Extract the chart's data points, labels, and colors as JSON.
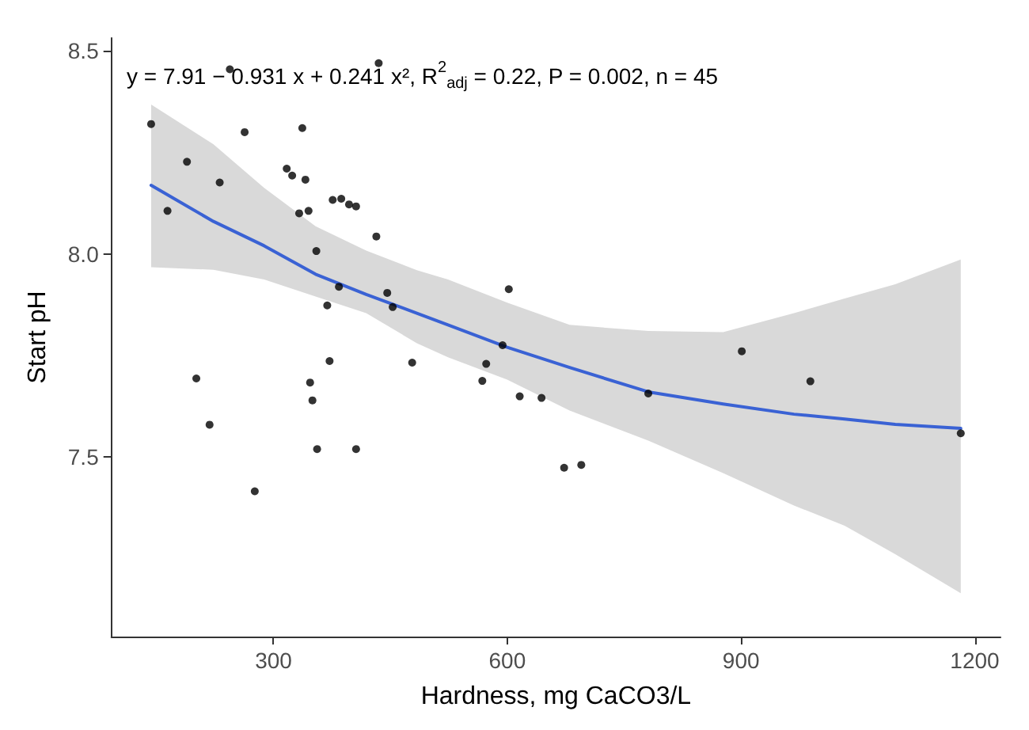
{
  "chart_data": {
    "type": "scatter",
    "xlabel": "Hardness, mg CaCO3/L",
    "ylabel": "Start pH",
    "annotations": [
      "y = 7.91 − 0.931 x + 0.241 x², R$^{2}$$_{adj}$ = 0.22, P = 0.002, n = 45"
    ],
    "xlim": [
      92,
      1233
    ],
    "ylim": [
      7.057,
      8.532
    ],
    "xticks": [
      300,
      600,
      900,
      1200
    ],
    "yticks": [
      {
        "value": 7.5,
        "label": "7.5"
      },
      {
        "value": 8,
        "label": "8.0"
      },
      {
        "value": 8.5,
        "label": "8.5"
      }
    ],
    "series": [
      {
        "color": "#000000",
        "marker": "circle",
        "x": [
          143,
          244,
          435,
          164,
          189,
          231,
          263,
          337,
          317,
          324,
          341,
          333,
          345,
          376,
          387,
          397,
          406,
          432,
          355,
          384,
          369,
          446,
          453,
          372,
          478,
          201,
          347,
          350,
          218,
          356,
          406,
          276,
          602,
          594,
          573,
          568,
          616,
          644,
          673,
          695,
          781,
          901,
          989,
          1182
        ],
        "values": [
          8.32,
          8.455,
          8.47,
          8.106,
          8.227,
          8.176,
          8.3,
          8.31,
          8.21,
          8.193,
          8.183,
          8.1,
          8.106,
          8.133,
          8.136,
          8.122,
          8.117,
          8.043,
          8.007,
          7.919,
          7.873,
          7.904,
          7.869,
          7.736,
          7.732,
          7.693,
          7.683,
          7.639,
          7.579,
          7.519,
          7.519,
          7.415,
          7.913,
          7.775,
          7.729,
          7.687,
          7.649,
          7.645,
          7.473,
          7.48,
          7.656,
          7.76,
          7.686,
          7.558
        ]
      },
      {
        "type": "line",
        "color": "#3a62d4",
        "marker": "none",
        "line_style": "solid",
        "x": [
          143,
          223,
          288,
          354,
          419,
          484,
          524,
          600,
          680,
          781,
          877,
          968,
          1033,
          1098,
          1182
        ],
        "values": [
          8.169,
          8.08,
          8.02,
          7.95,
          7.9,
          7.854,
          7.825,
          7.77,
          7.72,
          7.66,
          7.63,
          7.605,
          7.593,
          7.58,
          7.57
        ],
        "lower": [
          7.967,
          7.961,
          7.937,
          7.895,
          7.854,
          7.78,
          7.745,
          7.69,
          7.614,
          7.54,
          7.46,
          7.38,
          7.33,
          7.26,
          7.164
        ],
        "upper": [
          8.368,
          8.27,
          8.163,
          8.068,
          8.008,
          7.96,
          7.937,
          7.88,
          7.825,
          7.81,
          7.807,
          7.854,
          7.89,
          7.925,
          7.986
        ]
      }
    ]
  }
}
